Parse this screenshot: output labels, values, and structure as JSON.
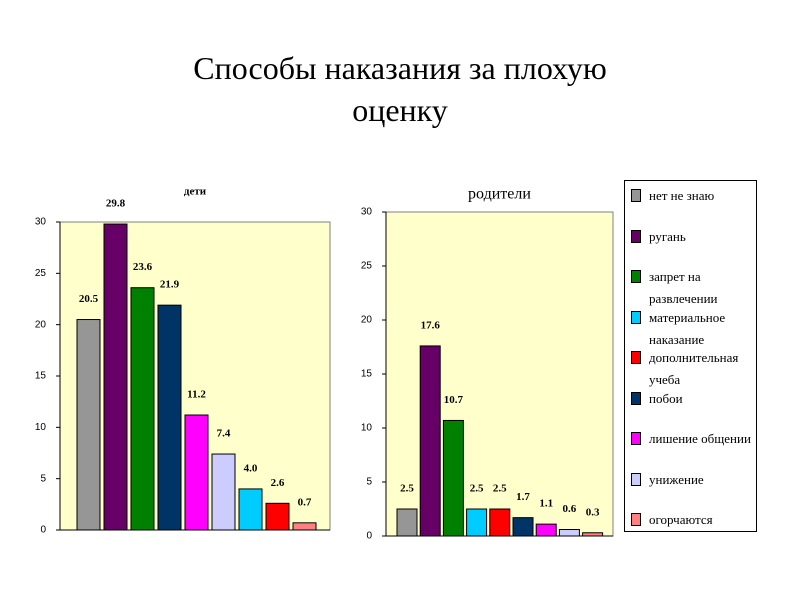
{
  "title": "Способы наказания за плохую оценку",
  "chart_data": [
    {
      "type": "bar",
      "title": "дети",
      "values": [
        20.5,
        29.8,
        23.6,
        21.9,
        11.2,
        7.4,
        4.0,
        2.6,
        0.7
      ],
      "value_labels": [
        "20.5",
        "29.8",
        "23.6",
        "21.9",
        "11.2",
        "7.4",
        "4.0",
        "2.6",
        "0.7"
      ],
      "colors": [
        "#969696",
        "#660066",
        "#008000",
        "#003366",
        "#ff00ff",
        "#ccccff",
        "#00ccff",
        "#ff0000",
        "#ff8080"
      ],
      "ylim": [
        0,
        30
      ],
      "yticks": [
        0,
        5,
        10,
        15,
        20,
        25,
        30
      ],
      "background": "#ffffcc"
    },
    {
      "type": "bar",
      "title": "родители",
      "series": [
        {
          "name": "нет не знаю",
          "color": "#969696",
          "values": [
            2.5
          ]
        },
        {
          "name": "ругань",
          "color": "#660066",
          "values": [
            17.6
          ]
        },
        {
          "name": "запрет на развлечении",
          "color": "#008000",
          "values": [
            10.7
          ]
        },
        {
          "name": "материальное наказание",
          "color": "#00ccff",
          "values": [
            2.5
          ]
        },
        {
          "name": "дополнительная учеба",
          "color": "#ff0000",
          "values": [
            2.5
          ]
        },
        {
          "name": "побои",
          "color": "#003366",
          "values": [
            1.7
          ]
        },
        {
          "name": "лишение общении",
          "color": "#ff00ff",
          "values": [
            1.1
          ]
        },
        {
          "name": "унижение",
          "color": "#ccccff",
          "values": [
            0.6
          ]
        },
        {
          "name": "огорчаются",
          "color": "#ff8080",
          "values": [
            0.3
          ]
        }
      ],
      "ylim": [
        0,
        30
      ],
      "yticks": [
        0,
        5,
        10,
        15,
        20,
        25,
        30
      ],
      "background": "#ffffcc",
      "legend": "right"
    }
  ]
}
